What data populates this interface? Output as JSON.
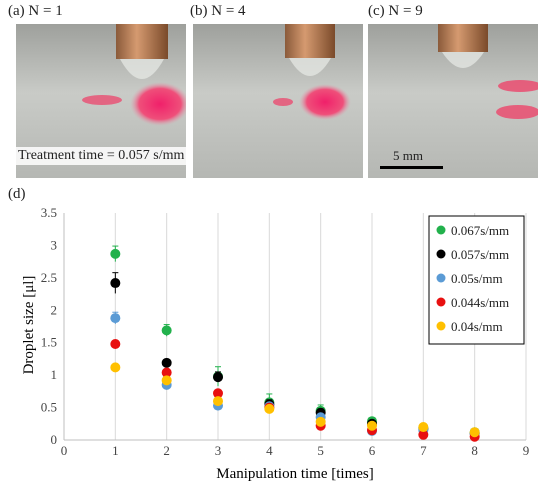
{
  "panels": {
    "a": {
      "label": "(a) N = 1"
    },
    "b": {
      "label": "(b) N = 4"
    },
    "c": {
      "label": "(c) N = 9"
    }
  },
  "photo_caption": "Treatment time = 0.057 s/mm",
  "scale_bar_label": "5 mm",
  "panel_d_label": "(d)",
  "chart_data": {
    "type": "scatter",
    "xlabel": "Manipulation time [times]",
    "ylabel": "Droplet size [μl]",
    "xlim": [
      0,
      9
    ],
    "ylim": [
      0,
      3.5
    ],
    "xticks": [
      0,
      1,
      2,
      3,
      4,
      5,
      6,
      7,
      8,
      9
    ],
    "yticks": [
      0,
      0.5,
      1,
      1.5,
      2,
      2.5,
      3,
      3.5
    ],
    "grid": "vertical",
    "legend_position": "top-right",
    "series": [
      {
        "name": "0.067s/mm",
        "color": "#22b14c",
        "x": [
          1,
          2,
          3,
          4,
          5,
          6,
          7,
          8
        ],
        "y": [
          2.87,
          1.69,
          0.98,
          0.58,
          0.45,
          0.29,
          0.19,
          0.12
        ],
        "err": [
          0.12,
          0.09,
          0.15,
          0.13,
          0.09,
          0.05,
          0.04,
          0.03
        ]
      },
      {
        "name": "0.057s/mm",
        "color": "#000000",
        "x": [
          1,
          2,
          3,
          4,
          5,
          6,
          7,
          8
        ],
        "y": [
          2.42,
          1.19,
          0.97,
          0.55,
          0.42,
          0.25,
          0.17,
          0.1
        ],
        "err": [
          0.16,
          0.05,
          0.08,
          0.07,
          0.06,
          0.04,
          0.03,
          0.02
        ]
      },
      {
        "name": "0.05s/mm",
        "color": "#5b9bd5",
        "x": [
          1,
          2,
          3,
          4,
          5,
          6,
          7,
          8
        ],
        "y": [
          1.88,
          0.85,
          0.53,
          0.52,
          0.35,
          0.14,
          0.15,
          0.1
        ],
        "err": [
          0.09,
          0.04,
          0.05,
          0.05,
          0.04,
          0.03,
          0.03,
          0.02
        ]
      },
      {
        "name": "0.044s/mm",
        "color": "#e81010",
        "x": [
          1,
          2,
          3,
          4,
          5,
          6,
          7,
          8
        ],
        "y": [
          1.48,
          1.04,
          0.72,
          0.5,
          0.22,
          0.15,
          0.08,
          0.05
        ],
        "err": [
          0.04,
          0.04,
          0.04,
          0.03,
          0.03,
          0.02,
          0.02,
          0.02
        ]
      },
      {
        "name": "0.04s/mm",
        "color": "#ffc000",
        "x": [
          1,
          2,
          3,
          4,
          5,
          6,
          7,
          8
        ],
        "y": [
          1.12,
          0.92,
          0.6,
          0.48,
          0.28,
          0.22,
          0.2,
          0.12
        ],
        "err": [
          0.04,
          0.04,
          0.04,
          0.03,
          0.03,
          0.02,
          0.02,
          0.02
        ]
      }
    ]
  }
}
